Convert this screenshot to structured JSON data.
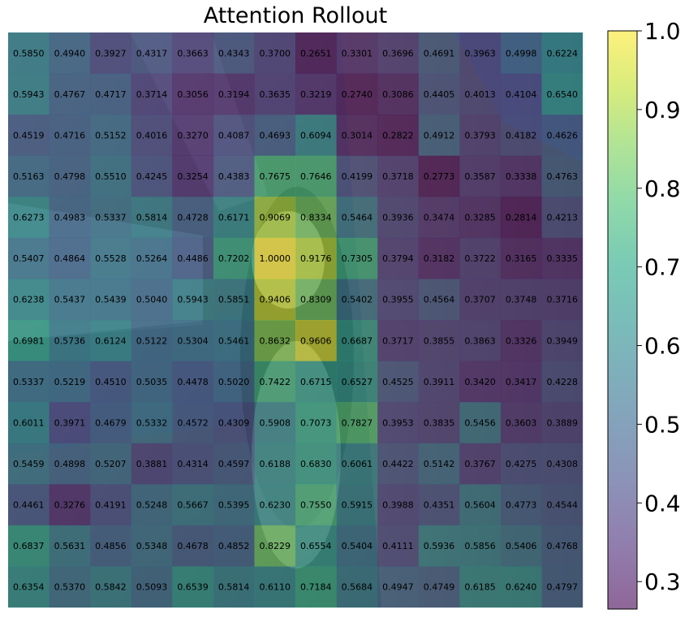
{
  "chart_data": {
    "type": "heatmap",
    "title": "Attention Rollout",
    "xlabel": "",
    "ylabel": "",
    "rows": 14,
    "cols": 14,
    "values": [
      [
        0.585,
        0.494,
        0.3927,
        0.4317,
        0.3663,
        0.4343,
        0.37,
        0.2651,
        0.3301,
        0.3696,
        0.4691,
        0.3963,
        0.4998,
        0.6224
      ],
      [
        0.5943,
        0.4767,
        0.4717,
        0.3714,
        0.3056,
        0.3194,
        0.3635,
        0.3219,
        0.274,
        0.3086,
        0.4405,
        0.4013,
        0.4104,
        0.654
      ],
      [
        0.4519,
        0.4716,
        0.5152,
        0.4016,
        0.327,
        0.4087,
        0.4693,
        0.6094,
        0.3014,
        0.2822,
        0.4912,
        0.3793,
        0.4182,
        0.4626
      ],
      [
        0.5163,
        0.4798,
        0.551,
        0.4245,
        0.3254,
        0.4383,
        0.7675,
        0.7646,
        0.4199,
        0.3718,
        0.2773,
        0.3587,
        0.3338,
        0.4763
      ],
      [
        0.6273,
        0.4983,
        0.5337,
        0.5814,
        0.4728,
        0.6171,
        0.9069,
        0.8334,
        0.5464,
        0.3936,
        0.3474,
        0.3285,
        0.2814,
        0.4213
      ],
      [
        0.5407,
        0.4864,
        0.5528,
        0.5264,
        0.4486,
        0.7202,
        1.0,
        0.9176,
        0.7305,
        0.3794,
        0.3182,
        0.3722,
        0.3165,
        0.3335
      ],
      [
        0.6238,
        0.5437,
        0.5439,
        0.504,
        0.5943,
        0.5851,
        0.9406,
        0.8309,
        0.5402,
        0.3955,
        0.4564,
        0.3707,
        0.3748,
        0.3716
      ],
      [
        0.6981,
        0.5736,
        0.6124,
        0.5122,
        0.5304,
        0.5461,
        0.8632,
        0.9606,
        0.6687,
        0.3717,
        0.3855,
        0.3863,
        0.3326,
        0.3949
      ],
      [
        0.5337,
        0.5219,
        0.451,
        0.5035,
        0.4478,
        0.502,
        0.7422,
        0.6715,
        0.6527,
        0.4525,
        0.3911,
        0.342,
        0.3417,
        0.4228
      ],
      [
        0.6011,
        0.3971,
        0.4679,
        0.5332,
        0.4572,
        0.4309,
        0.5908,
        0.7073,
        0.7827,
        0.3953,
        0.3835,
        0.5456,
        0.3603,
        0.3889
      ],
      [
        0.5459,
        0.4898,
        0.5207,
        0.3881,
        0.4314,
        0.4597,
        0.6188,
        0.683,
        0.6061,
        0.4422,
        0.5142,
        0.3767,
        0.4275,
        0.4308
      ],
      [
        0.4461,
        0.3276,
        0.4191,
        0.5248,
        0.5667,
        0.5395,
        0.623,
        0.755,
        0.5915,
        0.3988,
        0.4351,
        0.5604,
        0.4773,
        0.4544
      ],
      [
        0.6837,
        0.5631,
        0.4856,
        0.5348,
        0.4678,
        0.4852,
        0.8229,
        0.6554,
        0.5404,
        0.4111,
        0.5936,
        0.5856,
        0.5406,
        0.4768
      ],
      [
        0.6354,
        0.537,
        0.5842,
        0.5093,
        0.6539,
        0.5814,
        0.611,
        0.7184,
        0.5684,
        0.4947,
        0.4749,
        0.6185,
        0.624,
        0.4797
      ]
    ],
    "colorbar": {
      "colormap": "viridis",
      "alpha": 0.6,
      "vmin": 0.2651,
      "vmax": 1.0,
      "ticks": [
        0.3,
        0.4,
        0.5,
        0.6,
        0.7,
        0.8,
        0.9,
        1.0
      ],
      "tick_labels": [
        "0.3",
        "0.4",
        "0.5",
        "0.6",
        "0.7",
        "0.8",
        "0.9",
        "1.0"
      ]
    },
    "background": "grayscale-tinted photo of a black-and-white dog sitting on a wooden floor, overlaid by the heatmap",
    "grid": false
  }
}
